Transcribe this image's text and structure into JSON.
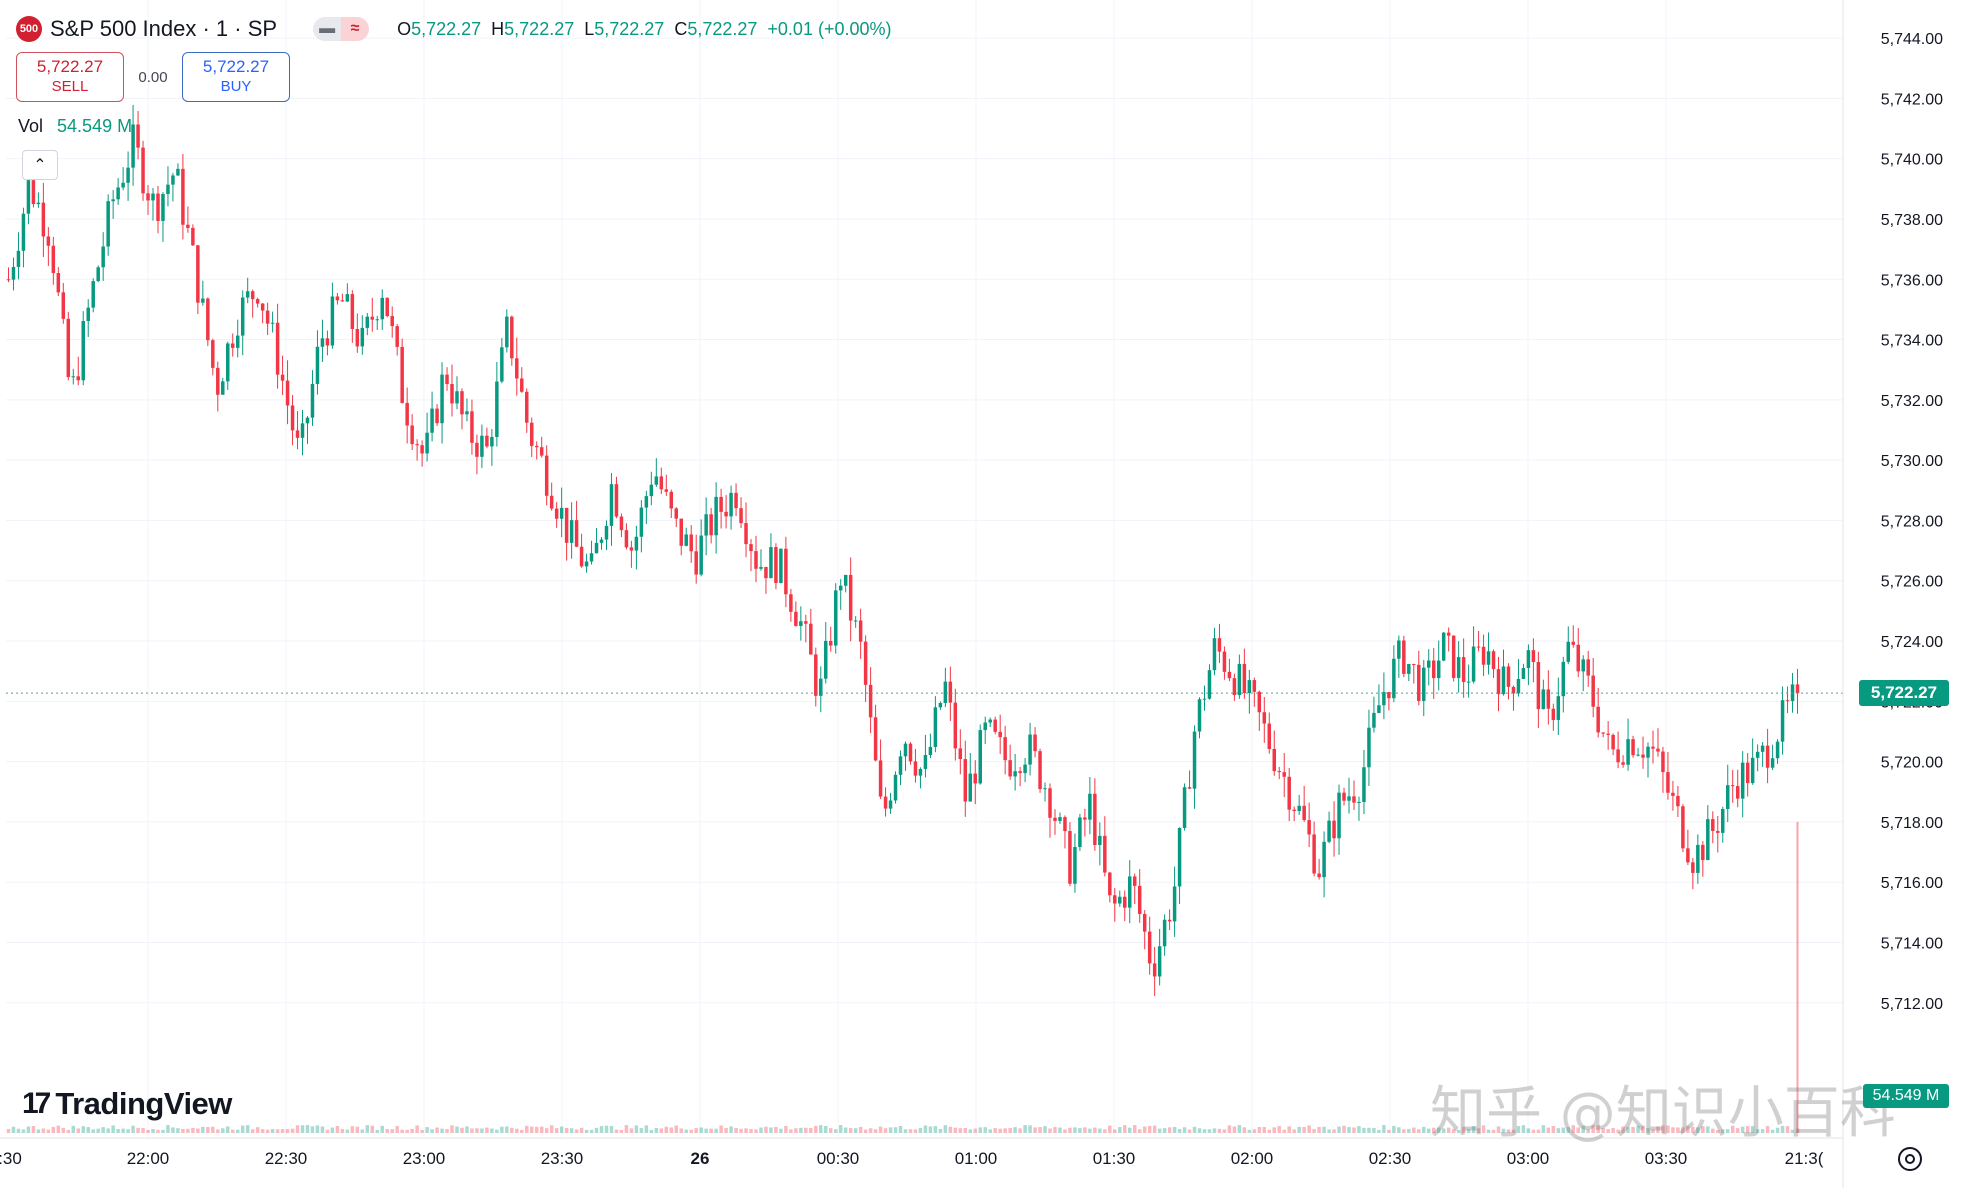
{
  "header": {
    "symbol_badge": "500",
    "title": "S&P 500 Index · 1 · SP",
    "chip_left": "▬",
    "chip_right": "≈",
    "ohlc": {
      "o_label": "O",
      "o": "5,722.27",
      "h_label": "H",
      "h": "5,722.27",
      "l_label": "L",
      "l": "5,722.27",
      "c_label": "C",
      "c": "5,722.27",
      "change": "+0.01 (+0.00%)"
    }
  },
  "trade": {
    "sell_price": "5,722.27",
    "sell_label": "SELL",
    "spread": "0.00",
    "buy_price": "5,722.27",
    "buy_label": "BUY"
  },
  "volume": {
    "label": "Vol",
    "value": "54.549 M",
    "axis_label": "54.549 M"
  },
  "collapse_icon": "chevron-up-icon",
  "logo": {
    "mark": "17",
    "text": "TradingView"
  },
  "watermark": "知乎 @知识小百科",
  "colors": {
    "up": "#089981",
    "down": "#f23645",
    "grid": "#f0f3fa",
    "text": "#131722",
    "price_line": "#5d9e8c"
  },
  "chart_data": {
    "type": "candlestick",
    "title": "S&P 500 Index · 1 · SP",
    "interval": "1 minute",
    "ylim": [
      5710.6,
      5744.6
    ],
    "y_ticks": [
      "5,744.00",
      "5,742.00",
      "5,740.00",
      "5,738.00",
      "5,736.00",
      "5,734.00",
      "5,732.00",
      "5,730.00",
      "5,728.00",
      "5,726.00",
      "5,724.00",
      "5,722.00",
      "5,720.00",
      "5,718.00",
      "5,716.00",
      "5,714.00",
      "5,712.00"
    ],
    "x_ticks": [
      ":30",
      "22:00",
      "22:30",
      "23:00",
      "23:30",
      "26",
      "00:30",
      "01:00",
      "01:30",
      "02:00",
      "02:30",
      "03:00",
      "03:30",
      "21:3("
    ],
    "last_price": "5,722.27",
    "last_value": 5722.27,
    "grid": true,
    "series": [
      {
        "price": 5736.0,
        "label": "21:25"
      },
      {
        "price": 5739.2,
        "label": "21:40"
      },
      {
        "price": 5737.5,
        "label": "21:45"
      },
      {
        "price": 5732.0,
        "label": "21:55"
      },
      {
        "price": 5735.5,
        "label": "22:00"
      },
      {
        "price": 5738.6,
        "label": "22:05"
      },
      {
        "price": 5740.5,
        "label": "22:10"
      },
      {
        "price": 5738.4,
        "label": "22:15"
      },
      {
        "price": 5739.6,
        "label": "22:20"
      },
      {
        "price": 5736.2,
        "label": "22:25"
      },
      {
        "price": 5732.4,
        "label": "22:30"
      },
      {
        "price": 5734.8,
        "label": "22:35"
      },
      {
        "price": 5735.8,
        "label": "22:40"
      },
      {
        "price": 5733.2,
        "label": "22:45"
      },
      {
        "price": 5730.0,
        "label": "22:50"
      },
      {
        "price": 5734.0,
        "label": "22:55"
      },
      {
        "price": 5735.3,
        "label": "23:00"
      },
      {
        "price": 5733.8,
        "label": "23:05"
      },
      {
        "price": 5735.8,
        "label": "23:10"
      },
      {
        "price": 5732.0,
        "label": "23:15"
      },
      {
        "price": 5730.0,
        "label": "23:20"
      },
      {
        "price": 5733.0,
        "label": "23:25"
      },
      {
        "price": 5731.0,
        "label": "23:30"
      },
      {
        "price": 5730.3,
        "label": "23:35"
      },
      {
        "price": 5734.4,
        "label": "23:40"
      },
      {
        "price": 5731.0,
        "label": "23:45"
      },
      {
        "price": 5729.3,
        "label": "23:50"
      },
      {
        "price": 5727.4,
        "label": "23:55"
      },
      {
        "price": 5726.2,
        "label": "00:00"
      },
      {
        "price": 5729.2,
        "label": "00:05"
      },
      {
        "price": 5727.0,
        "label": "00:10"
      },
      {
        "price": 5729.8,
        "label": "00:15"
      },
      {
        "price": 5727.8,
        "label": "00:20"
      },
      {
        "price": 5726.8,
        "label": "00:25"
      },
      {
        "price": 5728.2,
        "label": "00:30"
      },
      {
        "price": 5729.0,
        "label": "00:35"
      },
      {
        "price": 5726.6,
        "label": "00:40"
      },
      {
        "price": 5726.6,
        "label": "00:45"
      },
      {
        "price": 5724.8,
        "label": "00:50"
      },
      {
        "price": 5722.2,
        "label": "00:55"
      },
      {
        "price": 5726.2,
        "label": "00:58"
      },
      {
        "price": 5723.6,
        "label": "01:00"
      },
      {
        "price": 5718.0,
        "label": "01:02"
      },
      {
        "price": 5721.0,
        "label": "01:05"
      },
      {
        "price": 5719.5,
        "label": "01:10"
      },
      {
        "price": 5722.6,
        "label": "01:12"
      },
      {
        "price": 5718.8,
        "label": "01:15"
      },
      {
        "price": 5721.0,
        "label": "01:20"
      },
      {
        "price": 5720.0,
        "label": "01:25"
      },
      {
        "price": 5720.5,
        "label": "01:30"
      },
      {
        "price": 5719.0,
        "label": "01:35"
      },
      {
        "price": 5716.5,
        "label": "01:40"
      },
      {
        "price": 5718.6,
        "label": "01:42"
      },
      {
        "price": 5715.0,
        "label": "01:45"
      },
      {
        "price": 5716.0,
        "label": "01:48"
      },
      {
        "price": 5713.2,
        "label": "01:52"
      },
      {
        "price": 5715.6,
        "label": "01:55"
      },
      {
        "price": 5721.0,
        "label": "01:58"
      },
      {
        "price": 5723.8,
        "label": "02:02"
      },
      {
        "price": 5722.8,
        "label": "02:05"
      },
      {
        "price": 5721.6,
        "label": "02:08"
      },
      {
        "price": 5720.0,
        "label": "02:12"
      },
      {
        "price": 5718.4,
        "label": "02:15"
      },
      {
        "price": 5716.5,
        "label": "02:18"
      },
      {
        "price": 5718.6,
        "label": "02:22"
      },
      {
        "price": 5719.4,
        "label": "02:26"
      },
      {
        "price": 5722.2,
        "label": "02:30"
      },
      {
        "price": 5723.6,
        "label": "02:33"
      },
      {
        "price": 5722.4,
        "label": "02:36"
      },
      {
        "price": 5723.8,
        "label": "02:40"
      },
      {
        "price": 5722.8,
        "label": "02:45"
      },
      {
        "price": 5723.8,
        "label": "02:50"
      },
      {
        "price": 5722.4,
        "label": "02:55"
      },
      {
        "price": 5723.6,
        "label": "03:00"
      },
      {
        "price": 5721.2,
        "label": "03:03"
      },
      {
        "price": 5723.8,
        "label": "03:06"
      },
      {
        "price": 5722.4,
        "label": "03:10"
      },
      {
        "price": 5720.2,
        "label": "03:14"
      },
      {
        "price": 5720.8,
        "label": "03:18"
      },
      {
        "price": 5720.4,
        "label": "03:22"
      },
      {
        "price": 5718.6,
        "label": "03:25"
      },
      {
        "price": 5716.8,
        "label": "03:30"
      },
      {
        "price": 5717.8,
        "label": "03:34"
      },
      {
        "price": 5719.4,
        "label": "03:38"
      },
      {
        "price": 5719.8,
        "label": "03:42"
      },
      {
        "price": 5721.0,
        "label": "03:46"
      },
      {
        "price": 5722.27,
        "label": "03:50"
      }
    ]
  }
}
